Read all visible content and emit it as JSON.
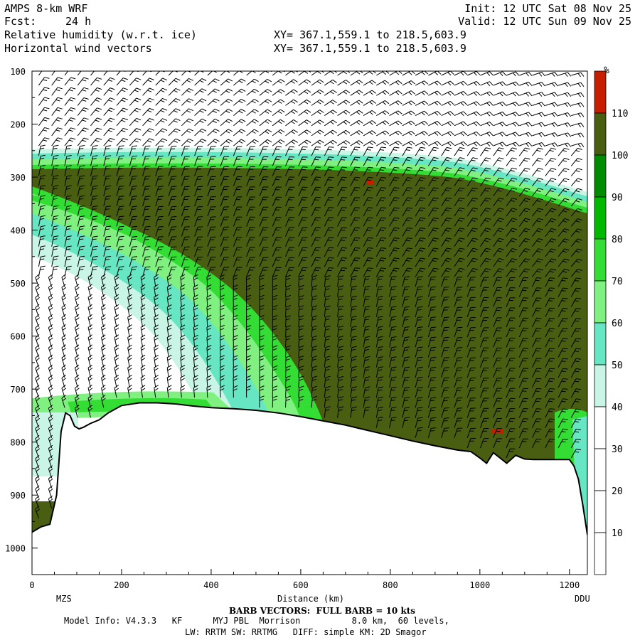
{
  "header": {
    "model": "AMPS 8-km WRF",
    "fcst_label": "Fcst:",
    "fcst_value": "24 h",
    "field1": "Relative humidity (w.r.t. ice)",
    "field2": "Horizontal wind vectors",
    "init": "Init: 12 UTC Sat 08 Nov 25",
    "valid": "Valid: 12 UTC Sun 09 Nov 25",
    "xy1": "XY= 367.1,559.1 to 218.5,603.9",
    "xy2": "XY= 367.1,559.1 to 218.5,603.9"
  },
  "footer": {
    "barb_note": "BARB VECTORS:  FULL BARB = 10 kts",
    "model_info": "Model Info: V4.3.3   KF      MYJ PBL  Morrison          8.0 km,  60 levels,",
    "physics": "LW: RRTM SW: RRTMG   DIFF: simple KM: 2D Smagor"
  },
  "chart_data": {
    "type": "heatmap",
    "title": "Relative humidity (w.r.t. ice)",
    "xlabel": "Distance (km)",
    "ylabel": "",
    "xlim": [
      0,
      1240
    ],
    "ylim": [
      1050,
      100
    ],
    "x_ticks": [
      0,
      200,
      400,
      600,
      800,
      1000,
      1200
    ],
    "y_ticks": [
      100,
      200,
      300,
      400,
      500,
      600,
      700,
      800,
      900,
      1000
    ],
    "left_endpoint": "MZS",
    "right_endpoint": "DDU",
    "colorbar": {
      "unit": "%",
      "levels": [
        10,
        20,
        30,
        40,
        50,
        60,
        70,
        80,
        90,
        100,
        110
      ],
      "colors": [
        "#ffffff",
        "#ffffff",
        "#ffffff",
        "#c9f5e6",
        "#66e6c2",
        "#80f080",
        "#33dd33",
        "#00b800",
        "#008c00",
        "#4a5e12",
        "#c81e00"
      ]
    },
    "terrain_profile": {
      "distance_km": [
        0,
        20,
        40,
        55,
        65,
        75,
        85,
        95,
        105,
        115,
        130,
        150,
        170,
        200,
        240,
        280,
        320,
        360,
        400,
        450,
        500,
        550,
        600,
        650,
        700,
        750,
        800,
        850,
        900,
        950,
        980,
        1000,
        1015,
        1030,
        1045,
        1060,
        1080,
        1100,
        1120,
        1140,
        1160,
        1180,
        1200,
        1210,
        1220,
        1230,
        1240
      ],
      "pressure_hpa": [
        970,
        960,
        955,
        900,
        780,
        745,
        750,
        770,
        775,
        772,
        765,
        758,
        745,
        731,
        726,
        726,
        728,
        732,
        735,
        737,
        740,
        745,
        752,
        760,
        768,
        778,
        788,
        798,
        807,
        815,
        818,
        830,
        840,
        820,
        830,
        840,
        825,
        832,
        833,
        833,
        833,
        833,
        833,
        845,
        870,
        920,
        975
      ]
    },
    "regions": [
      {
        "label": "cloud layer RH>100%",
        "distance_km": [
          0,
          1240
        ],
        "pressure_hpa": [
          275,
          830
        ]
      },
      {
        "label": "dry region RH<20%",
        "distance_km": [
          0,
          520
        ],
        "pressure_hpa": [
          100,
          260
        ]
      },
      {
        "label": "RH>110% spot",
        "distance_km": 755,
        "pressure_hpa": 315
      },
      {
        "label": "RH>110% spot",
        "distance_km": 1040,
        "pressure_hpa": 780
      }
    ]
  }
}
